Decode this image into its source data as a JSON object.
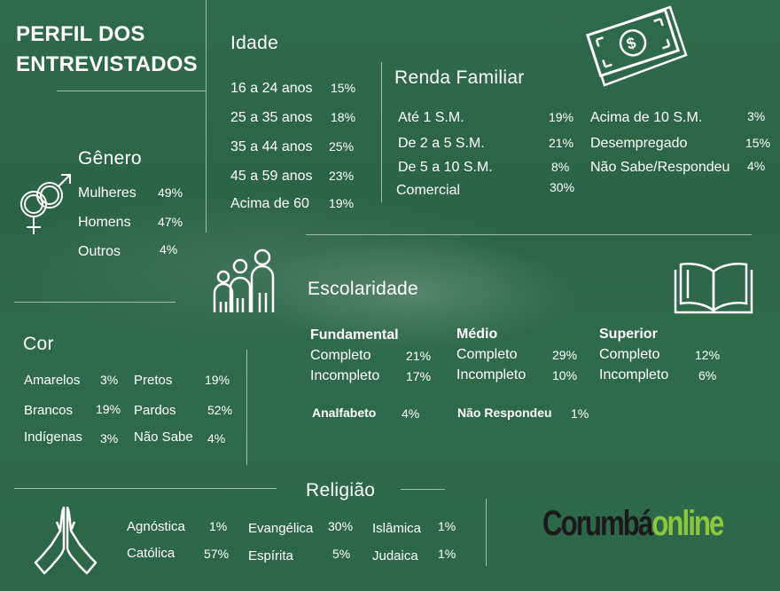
{
  "title": {
    "line1": "PERFIL DOS",
    "line2": "ENTREVISTADOS"
  },
  "idade": {
    "heading": "Idade",
    "rows": [
      {
        "label": "16 a 24 anos",
        "pct": "15%"
      },
      {
        "label": "25 a 35 anos",
        "pct": "18%"
      },
      {
        "label": "35 a 44 anos",
        "pct": "25%"
      },
      {
        "label": "45 a 59 anos",
        "pct": "23%"
      },
      {
        "label": "Acima de 60",
        "pct": "19%"
      }
    ]
  },
  "genero": {
    "heading": "Gênero",
    "rows": [
      {
        "label": "Mulheres",
        "pct": "49%"
      },
      {
        "label": "Homens",
        "pct": "47%"
      },
      {
        "label": "Outros",
        "pct": "4%"
      }
    ]
  },
  "renda": {
    "heading": "Renda Familiar",
    "left": [
      {
        "label": "Até 1 S.M.",
        "pct": "19%"
      },
      {
        "label": "De 2 a 5 S.M.",
        "pct": "21%"
      },
      {
        "label": "De 5 a 10 S.M.",
        "pct": "8%"
      },
      {
        "label": "Comercial",
        "pct": "30%"
      }
    ],
    "right": [
      {
        "label": "Acima de 10 S.M.",
        "pct": "3%"
      },
      {
        "label": "Desempregado",
        "pct": "15%"
      },
      {
        "label": "Não Sabe/Respondeu",
        "pct": "4%"
      }
    ]
  },
  "escolaridade": {
    "heading": "Escolaridade",
    "groups": [
      {
        "title": "Fundamental",
        "completo": "Completo",
        "completo_pct": "21%",
        "incompleto": "Incompleto",
        "incompleto_pct": "17%"
      },
      {
        "title": "Médio",
        "completo": "Completo",
        "completo_pct": "29%",
        "incompleto": "Incompleto",
        "incompleto_pct": "10%"
      },
      {
        "title": "Superior",
        "completo": "Completo",
        "completo_pct": "12%",
        "incompleto": "Incompleto",
        "incompleto_pct": "6%"
      }
    ],
    "analfabeto": {
      "label": "Analfabeto",
      "pct": "4%"
    },
    "nao_respondeu": {
      "label": "Não Respondeu",
      "pct": "1%"
    }
  },
  "cor": {
    "heading": "Cor",
    "left": [
      {
        "label": "Amarelos",
        "pct": "3%"
      },
      {
        "label": "Brancos",
        "pct": "19%"
      },
      {
        "label": "Indígenas",
        "pct": "3%"
      }
    ],
    "right": [
      {
        "label": "Pretos",
        "pct": "19%"
      },
      {
        "label": "Pardos",
        "pct": "52%"
      },
      {
        "label": "Não Sabe",
        "pct": "4%"
      }
    ]
  },
  "religiao": {
    "heading": "Religião",
    "cols": [
      [
        {
          "label": "Agnóstica",
          "pct": "1%"
        },
        {
          "label": "Católica",
          "pct": "57%"
        }
      ],
      [
        {
          "label": "Evangélica",
          "pct": "30%"
        },
        {
          "label": "Espírita",
          "pct": "5%"
        }
      ],
      [
        {
          "label": "Islâmica",
          "pct": "1%"
        },
        {
          "label": "Judaica",
          "pct": "1%"
        }
      ]
    ]
  },
  "logo": {
    "part1": "Corumbá",
    "part2": "online",
    "color1": "#1a1a1a",
    "color2": "#8cc63f"
  },
  "colors": {
    "background": "#2d6747",
    "text": "#ffffff"
  }
}
